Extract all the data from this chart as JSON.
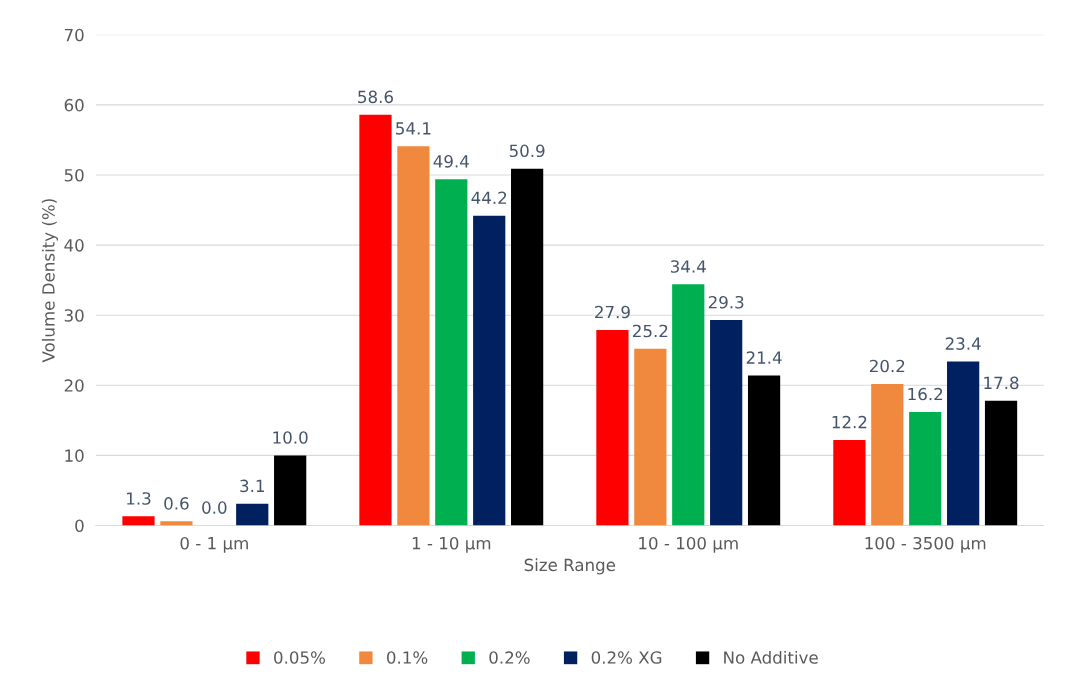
{
  "chart_data": {
    "type": "bar",
    "xlabel": "Size Range",
    "ylabel": "Volume Density (%)",
    "categories": [
      "0 - 1 µm",
      "1 - 10 µm",
      "10 - 100 µm",
      "100 - 3500 µm"
    ],
    "series": [
      {
        "name": "0.05%",
        "color": "#ff0000",
        "values": [
          1.3,
          58.6,
          27.9,
          12.2
        ],
        "value_labels": [
          "1.3",
          "58.6",
          "27.9",
          "12.2"
        ]
      },
      {
        "name": "0.1%",
        "color": "#f0883e",
        "values": [
          0.6,
          54.1,
          25.2,
          20.2
        ],
        "value_labels": [
          "0.6",
          "54.1",
          "25.2",
          "20.2"
        ]
      },
      {
        "name": "0.2%",
        "color": "#00b050",
        "values": [
          0,
          49.4,
          34.4,
          16.2
        ],
        "value_labels": [
          "0.0",
          "49.4",
          "34.4",
          "16.2"
        ]
      },
      {
        "name": "0.2% XG",
        "color": "#002060",
        "values": [
          3.1,
          44.2,
          29.3,
          23.4
        ],
        "value_labels": [
          "3.1",
          "44.2",
          "29.3",
          "23.4"
        ]
      },
      {
        "name": "No Additive",
        "color": "#000000",
        "values": [
          10,
          50.9,
          21.4,
          17.8
        ],
        "value_labels": [
          "10.0",
          "50.9",
          "21.4",
          "17.8"
        ]
      }
    ],
    "ylim": [
      0,
      70
    ],
    "yticks": [
      0,
      10,
      20,
      30,
      40,
      50,
      60,
      70
    ],
    "grid": "y",
    "legend": "bottom"
  }
}
